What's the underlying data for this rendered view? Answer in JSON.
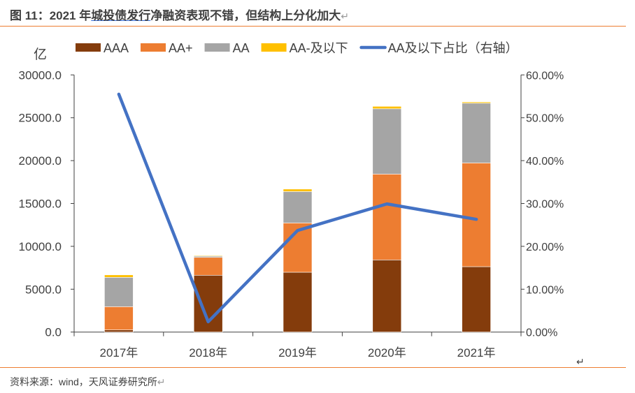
{
  "header": {
    "title_prefix": "图 11：2021 年",
    "title_underlined": "城投债发行",
    "title_rest": "净融资表现不错，但结构上分化加大"
  },
  "footer": {
    "source": "资料来源：wind，天风证券研究所"
  },
  "colors": {
    "AAA": "#843c0c",
    "AA+": "#ed7d31",
    "AA": "#a5a5a5",
    "AA-及以下": "#ffc000",
    "line": "#4472c4",
    "rule": "#ed7d31"
  },
  "chart_data": {
    "type": "bar+line",
    "stacked": true,
    "ylabel": "亿",
    "categories": [
      "2017年",
      "2018年",
      "2019年",
      "2020年",
      "2021年"
    ],
    "series": [
      {
        "name": "AAA",
        "type": "bar",
        "axis": "left",
        "values": [
          250,
          6630,
          6980,
          8420,
          7630
        ]
      },
      {
        "name": "AA+",
        "type": "bar",
        "axis": "left",
        "values": [
          2710,
          2080,
          5750,
          10010,
          12100
        ]
      },
      {
        "name": "AA",
        "type": "bar",
        "axis": "left",
        "values": [
          3420,
          140,
          3660,
          7620,
          6970
        ]
      },
      {
        "name": "AA-及以下",
        "type": "bar",
        "axis": "left",
        "values": [
          290,
          80,
          290,
          280,
          140
        ]
      },
      {
        "name": "AA及以下占比（右轴）",
        "type": "line",
        "axis": "right",
        "values": [
          55.5,
          2.4,
          23.7,
          29.9,
          26.3
        ]
      }
    ],
    "ylim_left": [
      0,
      30000
    ],
    "yticks_left": [
      "0.0",
      "5000.0",
      "10000.0",
      "15000.0",
      "20000.0",
      "25000.0",
      "30000.0"
    ],
    "ylim_right": [
      0,
      60
    ],
    "yticks_right": [
      "0.00%",
      "10.00%",
      "20.00%",
      "30.00%",
      "40.00%",
      "50.00%",
      "60.00%"
    ],
    "legend_position": "top",
    "grid": false
  }
}
